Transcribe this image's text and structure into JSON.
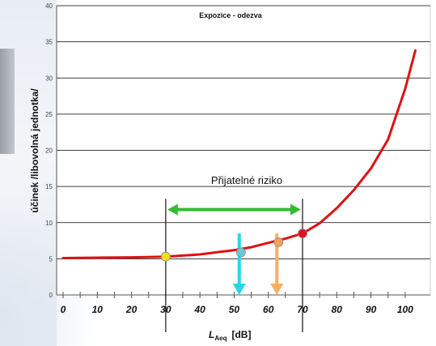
{
  "chart_data": {
    "type": "line",
    "title": "Expozice - odezva",
    "ylabel": "účinek /libovolná jednotka/",
    "xlabel_main": "L",
    "xlabel_sub": "Aeq",
    "xlabel_unit": "[dB]",
    "xlim": [
      0,
      105
    ],
    "ylim": [
      0,
      40
    ],
    "grid": true,
    "x_ticks": [
      0,
      10,
      20,
      30,
      40,
      50,
      60,
      70,
      80,
      90,
      100
    ],
    "y_ticks": [
      0,
      5,
      10,
      15,
      20,
      25,
      30,
      35,
      40
    ],
    "series": [
      {
        "color": "#dd1111",
        "x": [
          0,
          10,
          20,
          30,
          40,
          45,
          50,
          55,
          60,
          65,
          70,
          75,
          80,
          85,
          90,
          95,
          100,
          103
        ],
        "y": [
          5.1,
          5.15,
          5.2,
          5.3,
          5.6,
          5.9,
          6.2,
          6.6,
          7.2,
          7.8,
          8.5,
          9.9,
          12.0,
          14.5,
          17.5,
          21.5,
          28.5,
          33.8
        ]
      }
    ],
    "markers": [
      {
        "x": 30,
        "y": 5.3,
        "color": "#f2e01a"
      },
      {
        "x": 52,
        "y": 5.9,
        "color": "#6cc6d8"
      },
      {
        "x": 63,
        "y": 7.3,
        "color": "#f2a060"
      },
      {
        "x": 70,
        "y": 8.5,
        "color": "#e01020"
      }
    ],
    "annotations": {
      "region_label": "Přijatelné riziko",
      "region_range": [
        30,
        70
      ],
      "region_arrow_y": 11.8,
      "region_arrow_color": "#33bb33",
      "down_arrows": [
        {
          "x": 51.5,
          "y_from": 8.5,
          "y_to": 0,
          "color": "#22d8e8"
        },
        {
          "x": 62.5,
          "y_from": 8.5,
          "y_to": 0,
          "color": "#f5b060"
        }
      ]
    }
  }
}
